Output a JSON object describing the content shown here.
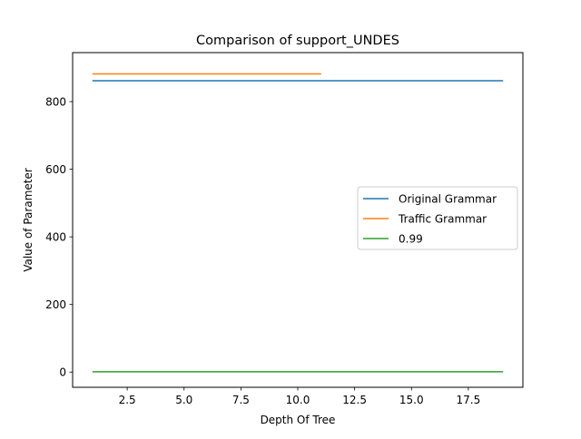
{
  "chart_data": {
    "type": "line",
    "title": "Comparison of support_UNDES",
    "xlabel": "Depth Of Tree",
    "ylabel": "Value of Parameter",
    "xlim": [
      0.1,
      19.9
    ],
    "ylim": [
      -45,
      945
    ],
    "xticks": [
      2.5,
      5.0,
      7.5,
      10.0,
      12.5,
      15.0,
      17.5
    ],
    "xtick_labels": [
      "2.5",
      "5.0",
      "7.5",
      "10.0",
      "12.5",
      "15.0",
      "17.5"
    ],
    "yticks": [
      0,
      200,
      400,
      600,
      800
    ],
    "ytick_labels": [
      "0",
      "200",
      "400",
      "600",
      "800"
    ],
    "grid": false,
    "legend_position": "center-right",
    "series": [
      {
        "name": "Original Grammar",
        "color": "#1f77b4",
        "x": [
          1,
          2,
          3,
          4,
          5,
          6,
          7,
          8,
          9,
          10,
          11,
          12,
          13,
          14,
          15,
          16,
          17,
          18,
          19
        ],
        "y": [
          862,
          862,
          862,
          862,
          862,
          862,
          862,
          862,
          862,
          862,
          862,
          862,
          862,
          862,
          862,
          862,
          862,
          862,
          862
        ]
      },
      {
        "name": "Traffic Grammar",
        "color": "#ff7f0e",
        "x": [
          1,
          2,
          3,
          4,
          5,
          6,
          7,
          8,
          9,
          10,
          11
        ],
        "y": [
          882,
          882,
          882,
          882,
          882,
          882,
          882,
          882,
          882,
          882,
          882
        ]
      },
      {
        "name": "0.99",
        "color": "#2ca02c",
        "x": [
          1,
          2,
          3,
          4,
          5,
          6,
          7,
          8,
          9,
          10,
          11,
          12,
          13,
          14,
          15,
          16,
          17,
          18,
          19
        ],
        "y": [
          0.99,
          0.99,
          0.99,
          0.99,
          0.99,
          0.99,
          0.99,
          0.99,
          0.99,
          0.99,
          0.99,
          0.99,
          0.99,
          0.99,
          0.99,
          0.99,
          0.99,
          0.99,
          0.99
        ]
      }
    ]
  }
}
